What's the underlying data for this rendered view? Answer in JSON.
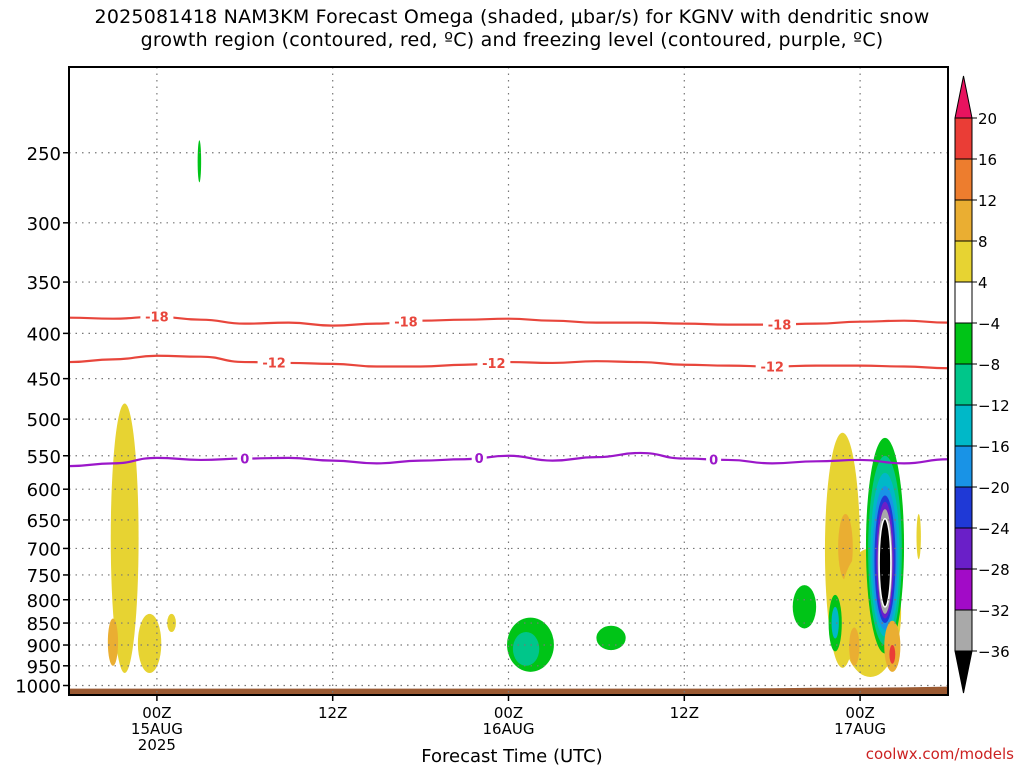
{
  "title": {
    "line1": "2025081418 NAM3KM Forecast Omega (shaded, μbar/s) for KGNV with dendritic snow",
    "line2": "growth region (contoured, red, ºC) and freezing level (contoured, purple, ºC)"
  },
  "credit": "coolwx.com/models",
  "colors": {
    "isotherm_red": "#e8463c",
    "freezing_purple": "#9b17c9",
    "ground": "#9b5a32",
    "grid": "#777777"
  },
  "chart_data": {
    "type": "heatmap",
    "xlabel": "Forecast Time (UTC)",
    "ylabel": "",
    "x_ticks": [
      {
        "hour": 6,
        "lines": [
          "00Z",
          "15AUG",
          "2025"
        ]
      },
      {
        "hour": 18,
        "lines": [
          "12Z"
        ]
      },
      {
        "hour": 30,
        "lines": [
          "00Z",
          "16AUG"
        ]
      },
      {
        "hour": 42,
        "lines": [
          "12Z"
        ]
      },
      {
        "hour": 54,
        "lines": [
          "00Z",
          "17AUG"
        ]
      }
    ],
    "xlim_hours": [
      0,
      60
    ],
    "ylim_hpa": [
      200,
      1025
    ],
    "y_scale": "log",
    "pressure_levels": [
      250,
      300,
      350,
      400,
      450,
      500,
      550,
      600,
      650,
      700,
      750,
      800,
      850,
      900,
      950,
      1000
    ],
    "colorbar": {
      "labels": [
        "20",
        "16",
        "12",
        "8",
        "4",
        "−4",
        "−8",
        "−12",
        "−16",
        "−20",
        "−24",
        "−28",
        "−32",
        "−36"
      ],
      "colors": [
        "#e8135f",
        "#ea3d36",
        "#ed7d2e",
        "#eaae32",
        "#e7d332",
        "#ffffff",
        "#00c417",
        "#00c68a",
        "#00b8c8",
        "#1993e6",
        "#1f39d6",
        "#6a1fc8",
        "#a20bc7",
        "#a9a9a9",
        "#000000"
      ],
      "over_color": "#e8135f",
      "under_color": "#000000"
    },
    "isotherms": [
      {
        "label": "-18",
        "color": "#e8463c",
        "points": [
          [
            0,
            384
          ],
          [
            3,
            385
          ],
          [
            6,
            383
          ],
          [
            9,
            386
          ],
          [
            12,
            390
          ],
          [
            15,
            389
          ],
          [
            18,
            392
          ],
          [
            21,
            390
          ],
          [
            24,
            387
          ],
          [
            27,
            386
          ],
          [
            30,
            385
          ],
          [
            33,
            387
          ],
          [
            36,
            389
          ],
          [
            39,
            389
          ],
          [
            42,
            390
          ],
          [
            45,
            391
          ],
          [
            48,
            391
          ],
          [
            51,
            390
          ],
          [
            54,
            388
          ],
          [
            57,
            387
          ],
          [
            60,
            389
          ]
        ],
        "label_hours": [
          6,
          23,
          48.5
        ]
      },
      {
        "label": "-12",
        "color": "#e8463c",
        "points": [
          [
            0,
            431
          ],
          [
            3,
            428
          ],
          [
            6,
            424
          ],
          [
            9,
            425
          ],
          [
            12,
            431
          ],
          [
            15,
            432
          ],
          [
            18,
            433
          ],
          [
            21,
            436
          ],
          [
            24,
            436
          ],
          [
            27,
            434
          ],
          [
            30,
            431
          ],
          [
            33,
            432
          ],
          [
            36,
            430
          ],
          [
            39,
            431
          ],
          [
            42,
            434
          ],
          [
            45,
            435
          ],
          [
            48,
            436
          ],
          [
            51,
            435
          ],
          [
            54,
            435
          ],
          [
            57,
            436
          ],
          [
            60,
            438
          ]
        ],
        "label_hours": [
          14,
          29,
          48
        ]
      },
      {
        "label": "0",
        "color": "#9b17c9",
        "points": [
          [
            0,
            565
          ],
          [
            3,
            561
          ],
          [
            6,
            553
          ],
          [
            9,
            556
          ],
          [
            12,
            554
          ],
          [
            15,
            553
          ],
          [
            18,
            557
          ],
          [
            21,
            561
          ],
          [
            24,
            557
          ],
          [
            27,
            555
          ],
          [
            30,
            550
          ],
          [
            33,
            557
          ],
          [
            36,
            552
          ],
          [
            39,
            546
          ],
          [
            42,
            554
          ],
          [
            45,
            556
          ],
          [
            48,
            561
          ],
          [
            51,
            558
          ],
          [
            54,
            556
          ],
          [
            57,
            561
          ],
          [
            60,
            555
          ]
        ],
        "label_hours": [
          12,
          28,
          44
        ]
      }
    ],
    "shaded_regions": [
      {
        "value": 4,
        "cx": 3.8,
        "hpa_top": 480,
        "hpa_bottom": 968,
        "half_width_h": 0.95
      },
      {
        "value": 8,
        "cx": 3.0,
        "hpa_top": 840,
        "hpa_bottom": 950,
        "half_width_h": 0.35
      },
      {
        "value": 4,
        "cx": 5.5,
        "hpa_top": 830,
        "hpa_bottom": 968,
        "half_width_h": 0.8
      },
      {
        "value": 4,
        "cx": 7.0,
        "hpa_top": 830,
        "hpa_bottom": 870,
        "half_width_h": 0.3
      },
      {
        "value": -4,
        "cx": 8.9,
        "hpa_top": 242,
        "hpa_bottom": 270,
        "half_width_h": 0.12
      },
      {
        "value": -4,
        "cx": 31.5,
        "hpa_top": 838,
        "hpa_bottom": 965,
        "half_width_h": 1.6
      },
      {
        "value": -8,
        "cx": 31.2,
        "hpa_top": 870,
        "hpa_bottom": 950,
        "half_width_h": 0.9
      },
      {
        "value": -4,
        "cx": 37.0,
        "hpa_top": 856,
        "hpa_bottom": 912,
        "half_width_h": 1.0
      },
      {
        "value": -4,
        "cx": 50.2,
        "hpa_top": 770,
        "hpa_bottom": 862,
        "half_width_h": 0.8
      },
      {
        "value": 4,
        "cx": 52.8,
        "hpa_top": 518,
        "hpa_bottom": 955,
        "half_width_h": 1.2
      },
      {
        "value": 8,
        "cx": 53.0,
        "hpa_top": 640,
        "hpa_bottom": 760,
        "half_width_h": 0.5
      },
      {
        "value": 4,
        "cx": 54.7,
        "hpa_top": 700,
        "hpa_bottom": 978,
        "half_width_h": 2.1
      },
      {
        "value": -4,
        "cx": 55.7,
        "hpa_top": 525,
        "hpa_bottom": 920,
        "half_width_h": 1.3
      },
      {
        "value": -8,
        "cx": 55.7,
        "hpa_top": 550,
        "hpa_bottom": 900,
        "half_width_h": 1.15
      },
      {
        "value": -12,
        "cx": 55.7,
        "hpa_top": 575,
        "hpa_bottom": 880,
        "half_width_h": 1.0
      },
      {
        "value": -16,
        "cx": 55.7,
        "hpa_top": 595,
        "hpa_bottom": 865,
        "half_width_h": 0.85
      },
      {
        "value": -20,
        "cx": 55.7,
        "hpa_top": 610,
        "hpa_bottom": 850,
        "half_width_h": 0.72
      },
      {
        "value": -24,
        "cx": 55.7,
        "hpa_top": 620,
        "hpa_bottom": 840,
        "half_width_h": 0.6
      },
      {
        "value": -32,
        "cx": 55.7,
        "hpa_top": 632,
        "hpa_bottom": 830,
        "half_width_h": 0.5
      },
      {
        "value": -36,
        "cx": 55.7,
        "hpa_top": 648,
        "hpa_bottom": 815,
        "half_width_h": 0.4
      },
      {
        "value": -4,
        "cx": 52.3,
        "hpa_top": 790,
        "hpa_bottom": 915,
        "half_width_h": 0.45
      },
      {
        "value": -12,
        "cx": 52.3,
        "hpa_top": 815,
        "hpa_bottom": 885,
        "half_width_h": 0.25
      },
      {
        "value": 8,
        "cx": 53.6,
        "hpa_top": 860,
        "hpa_bottom": 950,
        "half_width_h": 0.35
      },
      {
        "value": 8,
        "cx": 56.2,
        "hpa_top": 845,
        "hpa_bottom": 965,
        "half_width_h": 0.55
      },
      {
        "value": 16,
        "cx": 56.2,
        "hpa_top": 900,
        "hpa_bottom": 945,
        "half_width_h": 0.2
      },
      {
        "value": 4,
        "cx": 58.0,
        "hpa_top": 640,
        "hpa_bottom": 720,
        "half_width_h": 0.15
      }
    ],
    "ground": {
      "points": [
        [
          0,
          1008
        ],
        [
          45,
          1008
        ],
        [
          48,
          1007
        ],
        [
          51,
          1006
        ],
        [
          54,
          1006
        ],
        [
          57,
          1005
        ],
        [
          60,
          1003
        ]
      ]
    }
  }
}
